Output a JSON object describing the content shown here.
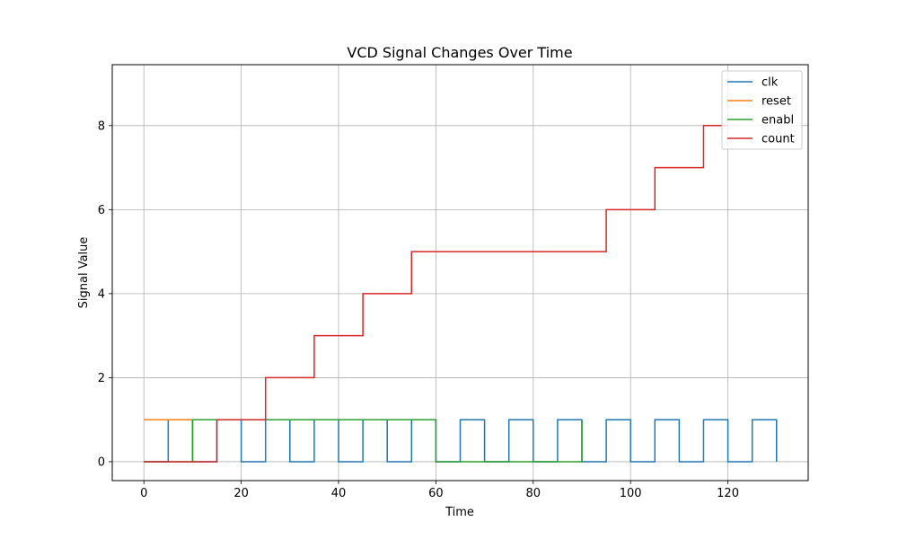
{
  "chart_data": {
    "type": "line",
    "step": "post",
    "title": "VCD Signal Changes Over Time",
    "xlabel": "Time",
    "ylabel": "Signal Value",
    "xlim": [
      -6.5,
      136.5
    ],
    "ylim": [
      -0.45,
      9.45
    ],
    "xticks": [
      0,
      20,
      40,
      60,
      80,
      100,
      120
    ],
    "yticks": [
      0,
      2,
      4,
      6,
      8
    ],
    "grid": true,
    "legend": "top-right",
    "series": [
      {
        "name": "clk",
        "color": "#1f77b4",
        "x": [
          0,
          5,
          10,
          15,
          20,
          25,
          30,
          35,
          40,
          45,
          50,
          55,
          60,
          65,
          70,
          75,
          80,
          85,
          90,
          95,
          100,
          105,
          110,
          115,
          120,
          125,
          130
        ],
        "values": [
          0,
          1,
          0,
          1,
          0,
          1,
          0,
          1,
          0,
          1,
          0,
          1,
          0,
          1,
          0,
          1,
          0,
          1,
          0,
          1,
          0,
          1,
          0,
          1,
          0,
          1,
          0
        ]
      },
      {
        "name": "reset",
        "color": "#ff7f0e",
        "x": [
          0,
          10
        ],
        "values": [
          1,
          0
        ]
      },
      {
        "name": "enabl",
        "color": "#2ca02c",
        "x": [
          0,
          10,
          60,
          90
        ],
        "values": [
          0,
          1,
          0,
          1
        ]
      },
      {
        "name": "count",
        "color": "#d62728",
        "x": [
          0,
          15,
          25,
          35,
          45,
          55,
          95,
          105,
          115,
          120
        ],
        "values": [
          0,
          1,
          2,
          3,
          4,
          5,
          6,
          7,
          8,
          8
        ]
      }
    ]
  }
}
